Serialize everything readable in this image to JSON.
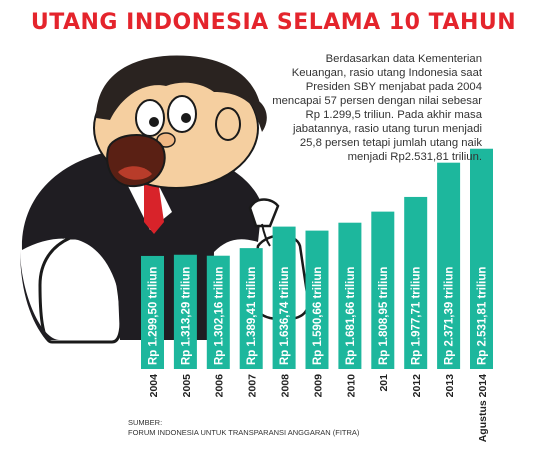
{
  "title": "UTANG INDONESIA SELAMA 10 TAHUN",
  "description": "Berdasarkan data Kementerian Keuangan, rasio utang Indonesia saat Presiden SBY menjabat pada 2004 mencapai 57 persen dengan nilai sebesar Rp 1.299,5 triliun. Pada akhir masa jabatannya, rasio utang turun menjadi 25,8 persen tetapi jumlah utang naik menjadi Rp2.531,81 triliun.",
  "source": {
    "label": "SUMBER:",
    "text": "FORUM INDONESIA UNTUK TRANSPARANSI ANGGARAN (FITRA)"
  },
  "colors": {
    "title": "#e4242c",
    "bar": "#1db79d",
    "suit": "#1f1d22",
    "tie": "#d8232a",
    "skin": "#f5cfa0",
    "hair": "#2a2320",
    "sack": "#ffffff"
  },
  "illustration": {
    "icon": "businessman-with-money-bags-icon"
  },
  "chart_data": {
    "type": "bar",
    "categories": [
      "2004",
      "2005",
      "2006",
      "2007",
      "2008",
      "2009",
      "2010",
      "201",
      "2012",
      "2013",
      "Agustus 2014"
    ],
    "values": [
      1299.5,
      1313.29,
      1302.16,
      1389.41,
      1636.74,
      1590.66,
      1681.66,
      1808.95,
      1977.71,
      2371.39,
      2531.81
    ],
    "labels": [
      "Rp 1.299,50 triliun",
      "Rp 1.313,29 triliun",
      "Rp 1.302,16 triliun",
      "Rp 1.389,41 triliun",
      "Rp 1.636,74 triliun",
      "Rp 1.590,66 triliun",
      "Rp 1.681,66 triliun",
      "Rp 1.808,95 triliun",
      "Rp 1.977,71 triliun",
      "Rp 2.371,39 triliun",
      "Rp 2.531,81 triliun"
    ],
    "title": "UTANG INDONESIA SELAMA 10 TAHUN",
    "xlabel": "",
    "ylabel": "",
    "unit": "triliun rupiah",
    "grid": false,
    "legend": "none"
  }
}
